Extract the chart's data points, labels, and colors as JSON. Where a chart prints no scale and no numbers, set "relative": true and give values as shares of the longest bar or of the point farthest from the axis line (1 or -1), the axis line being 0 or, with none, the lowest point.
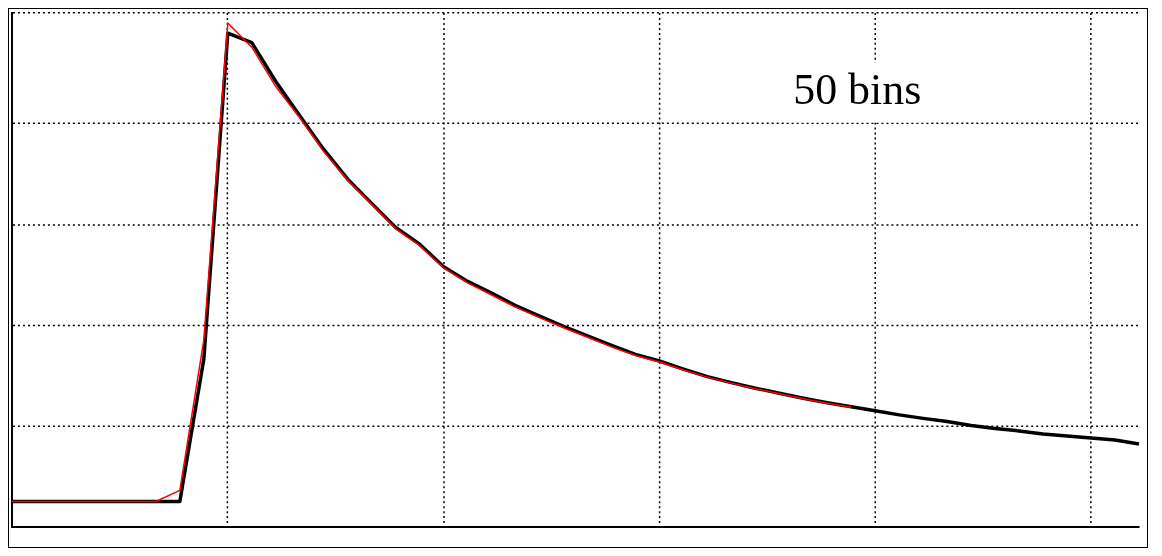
{
  "chart_data": {
    "type": "line",
    "relative": true,
    "grid": true,
    "legend": false,
    "marker": "none",
    "line_style": "solid",
    "categories": [
      null,
      null,
      null,
      null,
      null,
      null,
      null,
      null,
      null,
      null,
      null,
      null,
      null,
      null,
      null,
      null,
      null,
      null,
      null,
      null,
      null,
      null,
      null,
      null,
      null,
      null,
      null,
      null,
      null,
      null,
      null,
      null,
      null,
      null,
      null,
      null,
      null,
      null,
      null,
      null,
      null,
      null,
      null,
      null,
      null,
      null,
      null,
      null
    ],
    "series": [
      {
        "color": "#000000",
        "values": [
          0.05,
          0.05,
          0.05,
          0.05,
          0.05,
          0.05,
          0.05,
          0.05,
          0.333,
          0.98,
          0.961,
          0.884,
          0.816,
          0.749,
          0.69,
          0.642,
          0.594,
          0.561,
          0.516,
          0.487,
          0.464,
          0.439,
          0.418,
          0.398,
          0.379,
          0.36,
          0.342,
          0.329,
          0.313,
          0.298,
          0.286,
          0.275,
          0.265,
          0.255,
          0.246,
          0.238,
          0.23,
          0.222,
          0.215,
          0.209,
          0.201,
          0.195,
          0.19,
          0.184,
          0.18,
          0.176,
          0.172,
          0.164
        ]
      },
      {
        "color": "#ff0000",
        "values": [
          0.05,
          0.05,
          0.05,
          0.05,
          0.05,
          0.05,
          0.05,
          0.072,
          0.371,
          1,
          0.952,
          0.874,
          0.812,
          0.745,
          0.688,
          0.64,
          0.592,
          0.558,
          0.514,
          0.484,
          0.46,
          0.436,
          0.415,
          0.395,
          0.376,
          0.357,
          0.34,
          0.327,
          0.311,
          0.297,
          0.285,
          0.274,
          0.264,
          0.254,
          0.245,
          0.237,
          null,
          null,
          null,
          null,
          null,
          null,
          null,
          null,
          null,
          null,
          null,
          null
        ]
      }
    ],
    "annotations": [
      "50 bins"
    ]
  }
}
